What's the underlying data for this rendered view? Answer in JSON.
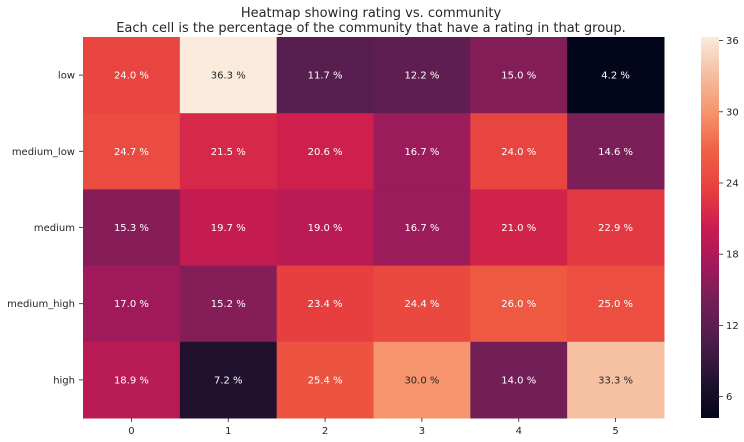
{
  "chart_data": {
    "type": "heatmap",
    "title": "Heatmap showing rating vs. community",
    "subtitle": "Each cell is the percentage of the community that have a rating in that group.",
    "rows": [
      "low",
      "medium_low",
      "medium",
      "medium_high",
      "high"
    ],
    "columns": [
      "0",
      "1",
      "2",
      "3",
      "4",
      "5"
    ],
    "values": [
      [
        24.0,
        36.3,
        11.7,
        12.2,
        15.0,
        4.2
      ],
      [
        24.7,
        21.5,
        20.6,
        16.7,
        24.0,
        14.6
      ],
      [
        15.3,
        19.7,
        19.0,
        16.7,
        21.0,
        22.9
      ],
      [
        17.0,
        15.2,
        23.4,
        24.4,
        26.0,
        25.0
      ],
      [
        18.9,
        7.2,
        25.4,
        30.0,
        14.0,
        33.3
      ]
    ],
    "value_suffix": " %",
    "colorbar": {
      "vmin": 4.2,
      "vmax": 36.3,
      "ticks": [
        6,
        12,
        18,
        24,
        30,
        36
      ],
      "colormap": "rocket"
    },
    "xlabel": "",
    "ylabel": ""
  }
}
